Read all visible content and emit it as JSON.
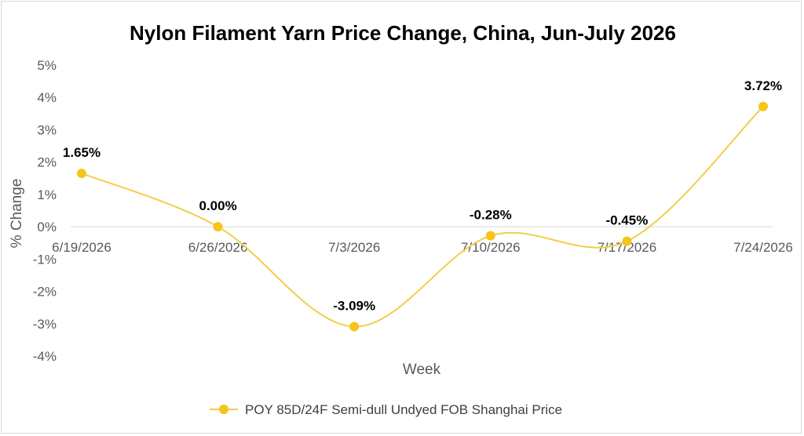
{
  "chart_data": {
    "type": "line",
    "title": "Nylon Filament Yarn Price Change, China, Jun-July 2026",
    "xlabel": "Week",
    "ylabel": "% Change",
    "categories": [
      "6/19/2026",
      "6/26/2026",
      "7/3/2026",
      "7/10/2026",
      "7/17/2026",
      "7/24/2026"
    ],
    "series": [
      {
        "name": "POY 85D/24F Semi-dull Undyed FOB Shanghai Price",
        "values": [
          1.65,
          0.0,
          -3.09,
          -0.28,
          -0.45,
          3.72
        ],
        "labels": [
          "1.65%",
          "0.00%",
          "-3.09%",
          "-0.28%",
          "-0.45%",
          "3.72%"
        ],
        "color": "#F5C518",
        "line_color": "#F2CE4A",
        "smooth": true
      }
    ],
    "ylim": [
      -4,
      5
    ],
    "yticks": [
      5,
      4,
      3,
      2,
      1,
      0,
      -1,
      -2,
      -3,
      -4
    ],
    "ytick_labels": [
      "5%",
      "4%",
      "3%",
      "2%",
      "1%",
      "0%",
      "-1%",
      "-2%",
      "-3%",
      "-4%"
    ],
    "grid": false,
    "legend_position": "bottom"
  }
}
